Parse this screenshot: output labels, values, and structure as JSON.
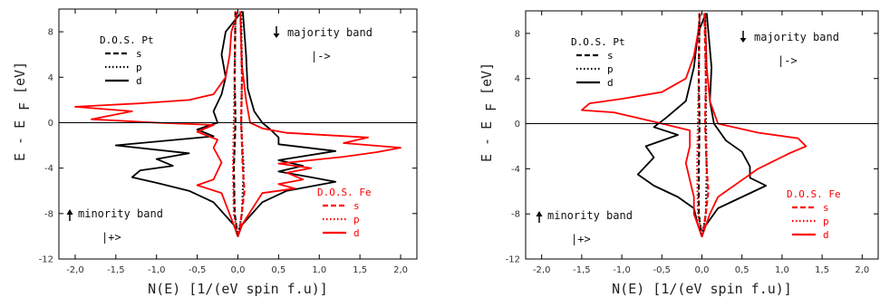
{
  "chart_data": [
    {
      "type": "line",
      "orientation": "horizontal-density",
      "xlabel": "N(E)  [1/(eV spin f.u)]",
      "ylabel": "E  -  E",
      "ylabel_sub": "F",
      "ylabel_unit": "[eV]",
      "xlim": [
        -2.2,
        2.2
      ],
      "ylim": [
        -12,
        10
      ],
      "xticks": [
        -2.0,
        -1.5,
        -1.0,
        -0.5,
        0.0,
        0.5,
        1.0,
        1.5,
        2.0
      ],
      "xtick_labels": [
        "-2,0",
        "-1,5",
        "-1,0",
        "-0,5",
        "0,0",
        "0,5",
        "1,0",
        "1,5",
        "2,0"
      ],
      "yticks": [
        -12,
        -8,
        -4,
        0,
        4,
        8
      ],
      "ytick_labels": [
        "-12",
        "-8",
        "-4",
        "0",
        "4",
        "8"
      ],
      "legend_pt": {
        "title": "D.O.S. Pt",
        "entries": [
          {
            "label": "s",
            "style": "dashed",
            "color": "#000000"
          },
          {
            "label": "p",
            "style": "dotted",
            "color": "#000000"
          },
          {
            "label": "d",
            "style": "solid",
            "color": "#000000"
          }
        ]
      },
      "legend_fe": {
        "title": "D.O.S. Fe",
        "entries": [
          {
            "label": "s",
            "style": "dashed",
            "color": "#ff0000"
          },
          {
            "label": "p",
            "style": "dotted",
            "color": "#ff0000"
          },
          {
            "label": "d",
            "style": "solid",
            "color": "#ff0000"
          }
        ]
      },
      "annotations": {
        "majority": "majority band",
        "majority_ket": "|->",
        "minority": "minority band",
        "minority_ket": "|+>"
      },
      "series": [
        {
          "name": "Pt d",
          "color": "#000000",
          "style": "solid",
          "points": [
            [
              0.05,
              9.8
            ],
            [
              -0.15,
              8
            ],
            [
              -0.2,
              6
            ],
            [
              -0.15,
              4
            ],
            [
              -0.2,
              2.5
            ],
            [
              -0.3,
              1.0
            ],
            [
              -0.25,
              0
            ],
            [
              -0.5,
              -0.6
            ],
            [
              -0.3,
              -1.2
            ],
            [
              -1.5,
              -2.0
            ],
            [
              -0.6,
              -2.7
            ],
            [
              -1.0,
              -3.2
            ],
            [
              -0.8,
              -3.8
            ],
            [
              -1.2,
              -4.2
            ],
            [
              -1.3,
              -4.8
            ],
            [
              -1.0,
              -5.3
            ],
            [
              -0.6,
              -6.0
            ],
            [
              -0.3,
              -7.0
            ],
            [
              -0.05,
              -9.0
            ],
            [
              0,
              -10
            ],
            [
              0.05,
              -9.0
            ],
            [
              0.3,
              -7.0
            ],
            [
              0.6,
              -6.0
            ],
            [
              0.9,
              -5.6
            ],
            [
              1.2,
              -5.2
            ],
            [
              0.9,
              -4.8
            ],
            [
              0.5,
              -4.3
            ],
            [
              0.8,
              -3.8
            ],
            [
              0.5,
              -3.3
            ],
            [
              1.2,
              -2.5
            ],
            [
              0.5,
              -1.9
            ],
            [
              0.5,
              -1.3
            ],
            [
              0.4,
              -0.6
            ],
            [
              0.3,
              0
            ],
            [
              0.2,
              1.0
            ],
            [
              0.12,
              3
            ],
            [
              0.1,
              6
            ],
            [
              0.06,
              9.8
            ]
          ]
        },
        {
          "name": "Fe d",
          "color": "#ff0000",
          "style": "solid",
          "points": [
            [
              0.0,
              9.8
            ],
            [
              -0.08,
              8
            ],
            [
              -0.1,
              6
            ],
            [
              -0.15,
              4
            ],
            [
              -0.3,
              2.5
            ],
            [
              -0.6,
              2.0
            ],
            [
              -1.2,
              1.7
            ],
            [
              -2.0,
              1.4
            ],
            [
              -1.3,
              1.0
            ],
            [
              -1.8,
              0.3
            ],
            [
              -1.0,
              0
            ],
            [
              -0.3,
              -0.2
            ],
            [
              -0.5,
              -0.8
            ],
            [
              -0.25,
              -1.5
            ],
            [
              -0.3,
              -2.2
            ],
            [
              -0.2,
              -3.5
            ],
            [
              -0.3,
              -5.0
            ],
            [
              -0.5,
              -5.5
            ],
            [
              -0.2,
              -6.2
            ],
            [
              -0.05,
              -9.0
            ],
            [
              0,
              -10
            ],
            [
              0.05,
              -9.0
            ],
            [
              0.3,
              -6.2
            ],
            [
              0.7,
              -5.8
            ],
            [
              0.5,
              -5.4
            ],
            [
              0.8,
              -5.0
            ],
            [
              0.6,
              -4.4
            ],
            [
              0.9,
              -4.0
            ],
            [
              0.5,
              -3.6
            ],
            [
              1.3,
              -3.0
            ],
            [
              1.7,
              -2.6
            ],
            [
              2.0,
              -2.2
            ],
            [
              1.3,
              -1.8
            ],
            [
              1.6,
              -1.3
            ],
            [
              0.6,
              -0.9
            ],
            [
              0.3,
              -0.5
            ],
            [
              0.15,
              0
            ],
            [
              0.1,
              2
            ],
            [
              0.05,
              5
            ],
            [
              0.03,
              9.8
            ]
          ]
        },
        {
          "name": "Pt s",
          "color": "#000000",
          "style": "dashed",
          "points": [
            [
              -0.03,
              9.8
            ],
            [
              -0.04,
              4
            ],
            [
              -0.03,
              0
            ],
            [
              -0.05,
              -4
            ],
            [
              -0.04,
              -8
            ],
            [
              0,
              -10
            ]
          ]
        },
        {
          "name": "Pt p",
          "color": "#000000",
          "style": "dotted",
          "points": [
            [
              0.04,
              9.8
            ],
            [
              0.05,
              4
            ],
            [
              0.04,
              0
            ],
            [
              0.07,
              -4
            ],
            [
              0.05,
              -8
            ],
            [
              0,
              -10
            ]
          ]
        },
        {
          "name": "Fe s",
          "color": "#ff0000",
          "style": "dashed",
          "points": [
            [
              0.03,
              9.8
            ],
            [
              0.05,
              4
            ],
            [
              0.04,
              0
            ],
            [
              0.06,
              -4
            ],
            [
              0.08,
              -6
            ],
            [
              0.03,
              -9
            ],
            [
              0,
              -10
            ]
          ]
        },
        {
          "name": "Fe p",
          "color": "#ff0000",
          "style": "dotted",
          "points": [
            [
              -0.03,
              9.8
            ],
            [
              -0.04,
              4
            ],
            [
              -0.05,
              0
            ],
            [
              -0.06,
              -4
            ],
            [
              -0.05,
              -8
            ],
            [
              0,
              -10
            ]
          ]
        }
      ]
    },
    {
      "type": "line",
      "orientation": "horizontal-density",
      "xlabel": "N(E)  [1/(eV spin f.u)]",
      "ylabel": "E  -  E",
      "ylabel_sub": "F",
      "ylabel_unit": "[eV]",
      "xlim": [
        -2.2,
        2.2
      ],
      "ylim": [
        -12,
        10
      ],
      "xticks": [
        -2.0,
        -1.5,
        -1.0,
        -0.5,
        0.0,
        0.5,
        1.0,
        1.5,
        2.0
      ],
      "xtick_labels": [
        "-2,0",
        "-1,5",
        "-1,0",
        "-0,5",
        "0,0",
        "0,5",
        "1,0",
        "1,5",
        "2,0"
      ],
      "yticks": [
        -12,
        -8,
        -4,
        0,
        4,
        8
      ],
      "ytick_labels": [
        "-12",
        "-8",
        "-4",
        "0",
        "4",
        "8"
      ],
      "legend_pt": {
        "title": "D.O.S. Pt",
        "entries": [
          {
            "label": "s",
            "style": "dashed",
            "color": "#000000"
          },
          {
            "label": "p",
            "style": "dotted",
            "color": "#000000"
          },
          {
            "label": "d",
            "style": "solid",
            "color": "#000000"
          }
        ]
      },
      "legend_fe": {
        "title": "D.O.S. Fe",
        "entries": [
          {
            "label": "s",
            "style": "dashed",
            "color": "#ff0000"
          },
          {
            "label": "p",
            "style": "dotted",
            "color": "#ff0000"
          },
          {
            "label": "d",
            "style": "solid",
            "color": "#ff0000"
          }
        ]
      },
      "annotations": {
        "majority": "majority band",
        "majority_ket": "|->",
        "minority": "minority band",
        "minority_ket": "|+>"
      },
      "series": [
        {
          "name": "Pt d",
          "color": "#000000",
          "style": "solid",
          "points": [
            [
              0.05,
              9.8
            ],
            [
              -0.05,
              8
            ],
            [
              -0.1,
              5
            ],
            [
              -0.2,
              2
            ],
            [
              -0.45,
              0.5
            ],
            [
              -0.6,
              -0.3
            ],
            [
              -0.3,
              -1.0
            ],
            [
              -0.7,
              -2.0
            ],
            [
              -0.6,
              -3.0
            ],
            [
              -0.8,
              -4.5
            ],
            [
              -0.6,
              -5.5
            ],
            [
              -0.3,
              -6.5
            ],
            [
              -0.1,
              -7.5
            ],
            [
              -0.05,
              -9.0
            ],
            [
              0,
              -10
            ],
            [
              0.05,
              -9.0
            ],
            [
              0.2,
              -7.5
            ],
            [
              0.5,
              -6.5
            ],
            [
              0.8,
              -5.5
            ],
            [
              0.6,
              -4.8
            ],
            [
              0.6,
              -3.8
            ],
            [
              0.5,
              -2.5
            ],
            [
              0.3,
              -1.5
            ],
            [
              0.15,
              0
            ],
            [
              0.1,
              2
            ],
            [
              0.12,
              5
            ],
            [
              0.06,
              9.8
            ]
          ]
        },
        {
          "name": "Fe d",
          "color": "#ff0000",
          "style": "solid",
          "points": [
            [
              -0.02,
              9.8
            ],
            [
              -0.05,
              8
            ],
            [
              -0.1,
              6
            ],
            [
              -0.2,
              4
            ],
            [
              -0.5,
              2.8
            ],
            [
              -1.0,
              2.2
            ],
            [
              -1.4,
              1.8
            ],
            [
              -1.5,
              1.2
            ],
            [
              -1.1,
              1.0
            ],
            [
              -0.8,
              0.5
            ],
            [
              -0.5,
              0
            ],
            [
              -0.15,
              -0.6
            ],
            [
              -0.15,
              -2.0
            ],
            [
              -0.2,
              -3.5
            ],
            [
              -0.15,
              -5.0
            ],
            [
              -0.1,
              -6.5
            ],
            [
              -0.1,
              -8.0
            ],
            [
              -0.05,
              -9.0
            ],
            [
              0,
              -10
            ],
            [
              0.05,
              -9.0
            ],
            [
              0.1,
              -8.0
            ],
            [
              0.2,
              -6.5
            ],
            [
              0.5,
              -5.0
            ],
            [
              0.7,
              -4.0
            ],
            [
              1.1,
              -2.6
            ],
            [
              1.3,
              -2.0
            ],
            [
              1.2,
              -1.3
            ],
            [
              0.7,
              -0.8
            ],
            [
              0.2,
              0
            ],
            [
              0.1,
              2
            ],
            [
              0.06,
              5
            ],
            [
              0.04,
              9.8
            ]
          ]
        },
        {
          "name": "Pt s",
          "color": "#000000",
          "style": "dashed",
          "points": [
            [
              -0.03,
              9.8
            ],
            [
              -0.04,
              4
            ],
            [
              -0.03,
              0
            ],
            [
              -0.04,
              -4
            ],
            [
              -0.04,
              -8
            ],
            [
              0,
              -10
            ]
          ]
        },
        {
          "name": "Pt p",
          "color": "#000000",
          "style": "dotted",
          "points": [
            [
              0.04,
              9.8
            ],
            [
              0.05,
              4
            ],
            [
              0.05,
              0
            ],
            [
              0.06,
              -4
            ],
            [
              0.05,
              -8
            ],
            [
              0,
              -10
            ]
          ]
        },
        {
          "name": "Fe s",
          "color": "#ff0000",
          "style": "dashed",
          "points": [
            [
              0.03,
              9.8
            ],
            [
              0.05,
              4
            ],
            [
              0.04,
              0
            ],
            [
              0.06,
              -4
            ],
            [
              0.08,
              -6
            ],
            [
              0.03,
              -9
            ],
            [
              0,
              -10
            ]
          ]
        },
        {
          "name": "Fe p",
          "color": "#ff0000",
          "style": "dotted",
          "points": [
            [
              -0.03,
              9.8
            ],
            [
              -0.04,
              4
            ],
            [
              -0.05,
              0
            ],
            [
              -0.06,
              -4
            ],
            [
              -0.05,
              -8
            ],
            [
              0,
              -10
            ]
          ]
        }
      ]
    }
  ]
}
